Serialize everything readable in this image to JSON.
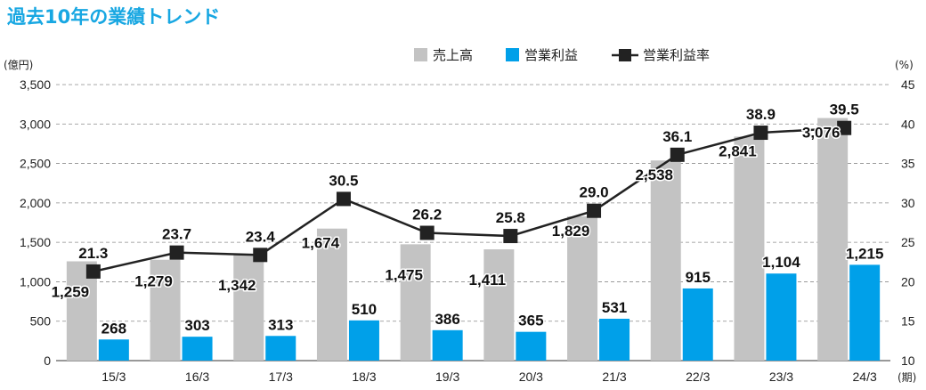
{
  "title": "過去10年の業績トレンド",
  "colors": {
    "title": "#18a7e2",
    "sales": "#c3c3c3",
    "operating_profit": "#00a0e9",
    "margin_line": "#222222",
    "grid": "#8c8c8c"
  },
  "chart_data": {
    "type": "bar",
    "title": "過去10年の業績トレンド",
    "categories": [
      "15/3",
      "16/3",
      "17/3",
      "18/3",
      "19/3",
      "20/3",
      "21/3",
      "22/3",
      "23/3",
      "24/3"
    ],
    "x_suffix": "(期)",
    "y_left": {
      "unit": "(億円)",
      "ylim": [
        0,
        3500
      ],
      "ticks": [
        "0",
        "500",
        "1,000",
        "1,500",
        "2,000",
        "2,500",
        "3,000",
        "3,500"
      ]
    },
    "y_right": {
      "unit": "(%)",
      "ylim": [
        10,
        45
      ],
      "ticks": [
        "10",
        "15",
        "20",
        "25",
        "30",
        "35",
        "40",
        "45"
      ]
    },
    "grid": "horizontal dashed",
    "legend_position": "top-right",
    "series": [
      {
        "name": "売上高",
        "type": "bar",
        "axis": "left",
        "values": [
          1259,
          1279,
          1342,
          1674,
          1475,
          1411,
          1829,
          2538,
          2841,
          3076
        ],
        "labels": [
          "1,259",
          "1,279",
          "1,342",
          "1,674",
          "1,475",
          "1,411",
          "1,829",
          "2,538",
          "2,841",
          "3,076"
        ]
      },
      {
        "name": "営業利益",
        "type": "bar",
        "axis": "left",
        "values": [
          268,
          303,
          313,
          510,
          386,
          365,
          531,
          915,
          1104,
          1215
        ],
        "labels": [
          "268",
          "303",
          "313",
          "510",
          "386",
          "365",
          "531",
          "915",
          "1,104",
          "1,215"
        ]
      },
      {
        "name": "営業利益率",
        "type": "line",
        "axis": "right",
        "values": [
          21.3,
          23.7,
          23.4,
          30.5,
          26.2,
          25.8,
          29.0,
          36.1,
          38.9,
          39.5
        ],
        "labels": [
          "21.3",
          "23.7",
          "23.4",
          "30.5",
          "26.2",
          "25.8",
          "29.0",
          "36.1",
          "38.9",
          "39.5"
        ]
      }
    ]
  }
}
